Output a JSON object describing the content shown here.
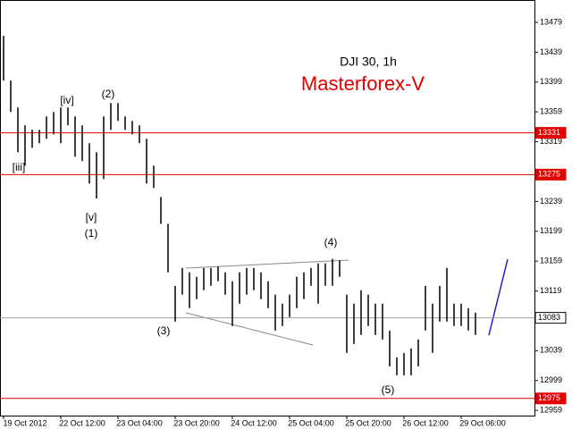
{
  "chart_data": {
    "type": "ohlc",
    "title": "DJI 30, 1h",
    "subtitle": "Masterforex-V",
    "color": "#000000",
    "high": [
      13461,
      13401,
      13365,
      13341,
      13335,
      13335,
      13353,
      13359,
      13365,
      13365,
      13353,
      13341,
      13317,
      13305,
      13353,
      13371,
      13371,
      13353,
      13347,
      13341,
      13323,
      13287,
      13245,
      13209,
      13126,
      13150,
      13144,
      13138,
      13150,
      13150,
      13152,
      13144,
      13132,
      13144,
      13150,
      13150,
      13144,
      13132,
      13114,
      13102,
      13114,
      13138,
      13144,
      13150,
      13156,
      13156,
      13162,
      13160,
      13114,
      13102,
      13120,
      13114,
      13102,
      13102,
      13066,
      13030,
      13036,
      13042,
      13054,
      13126,
      13102,
      13126,
      13150,
      13102,
      13102,
      13096,
      13090
    ],
    "low": [
      13401,
      13359,
      13305,
      13287,
      13311,
      13317,
      13323,
      13329,
      13317,
      13341,
      13299,
      13293,
      13263,
      13243,
      13269,
      13335,
      13347,
      13335,
      13329,
      13317,
      13263,
      13257,
      13209,
      13144,
      13078,
      13114,
      13096,
      13108,
      13120,
      13126,
      13132,
      13114,
      13072,
      13102,
      13114,
      13120,
      13108,
      13096,
      13066,
      13072,
      13084,
      13096,
      13108,
      13126,
      13102,
      13126,
      13126,
      13138,
      13036,
      13048,
      13060,
      13072,
      13060,
      13054,
      13018,
      13006,
      13006,
      13006,
      13018,
      13066,
      13036,
      13078,
      13078,
      13072,
      13072,
      13066,
      13060
    ],
    "x_labels": [
      "19 Oct 2012",
      "22 Oct 12:00",
      "23 Oct 04:00",
      "23 Oct 20:00",
      "24 Oct 12:00",
      "25 Oct 04:00",
      "25 Oct 20:00",
      "26 Oct 12:00",
      "29 Oct 06:00"
    ],
    "ylim": [
      12952,
      13509
    ],
    "yticks": [
      13479,
      13439,
      13399,
      13359,
      13319,
      13239,
      13199,
      13159,
      13119,
      13039,
      12999,
      12959
    ],
    "levels": [
      {
        "value": 13331,
        "color": "#e00000"
      },
      {
        "value": 13275,
        "color": "#e00000"
      },
      {
        "value": 12975,
        "color": "#e00000"
      },
      {
        "value": 13083,
        "color": "#a0a0a0"
      }
    ],
    "annotations": [
      "[iv]",
      "(2)",
      "[iii]",
      "[v]",
      "(1)",
      "(3)",
      "(4)",
      "(5)"
    ]
  }
}
